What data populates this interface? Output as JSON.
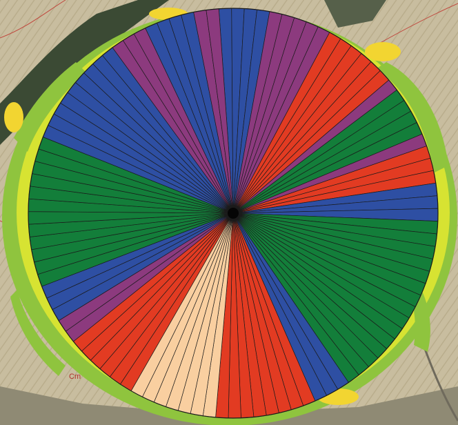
{
  "map": {
    "field_label": "Cm",
    "colors": {
      "blue": "#2e4fa3",
      "purple": "#8c3a7e",
      "red": "#e23b22",
      "green": "#137e3a",
      "peach": "#f9cfa0",
      "buffer_light": "#d7e332",
      "buffer_mid": "#8fc43e",
      "buffer_yellow": "#f2d531",
      "sector_line": "#1b1b1b",
      "pivot": "#050505"
    },
    "sector_groups": [
      {
        "color": "blue",
        "count": 4
      },
      {
        "color": "purple",
        "count": 5
      },
      {
        "color": "red",
        "count": 6
      },
      {
        "color": "purple",
        "count": 1
      },
      {
        "color": "green",
        "count": 4
      },
      {
        "color": "purple",
        "count": 1
      },
      {
        "color": "red",
        "count": 3
      },
      {
        "color": "blue",
        "count": 3
      },
      {
        "color": "green",
        "count": 15
      },
      {
        "color": "blue",
        "count": 3
      },
      {
        "color": "red",
        "count": 8
      },
      {
        "color": "peach",
        "count": 7
      },
      {
        "color": "red",
        "count": 6
      },
      {
        "color": "purple",
        "count": 2
      },
      {
        "color": "blue",
        "count": 3
      },
      {
        "color": "green",
        "count": 12
      },
      {
        "color": "blue",
        "count": 9
      },
      {
        "color": "purple",
        "count": 3
      },
      {
        "color": "blue",
        "count": 4
      },
      {
        "color": "purple",
        "count": 2
      }
    ]
  }
}
